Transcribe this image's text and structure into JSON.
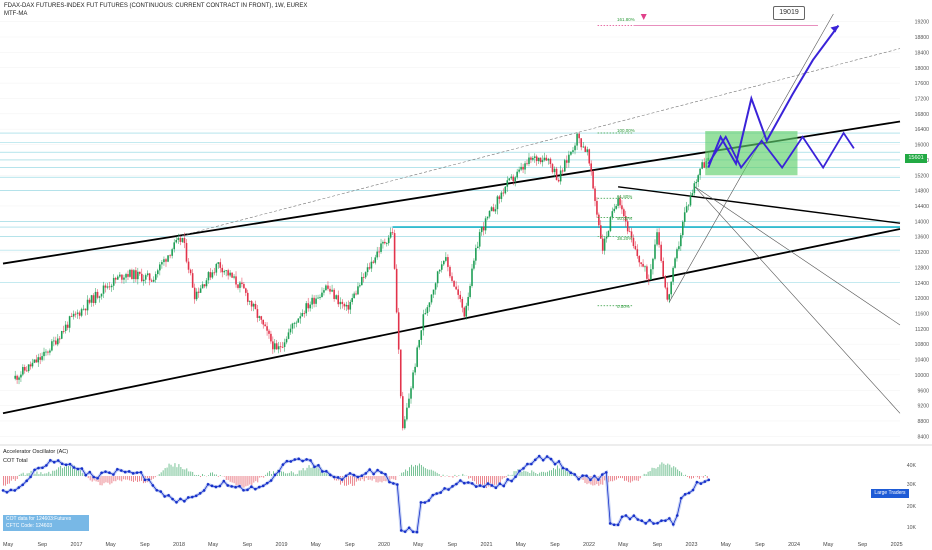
{
  "header": {
    "title": "FDAX-DAX FUTURES-INDEX FUT FUTURES (CONTINUOUS: CURRENT CONTRACT IN FRONT), 1W, EUREX",
    "indicator": "MTF-MA"
  },
  "target_label": "19019",
  "price_badge": "15601",
  "indicators": {
    "ac_label": "Accelerator Oscillator (AC)",
    "cot_label": "COT Total",
    "cot_info_line1": "COT data for 124603:Futures",
    "cot_info_line2": "CFTC Code: 124603",
    "large_traders": "Large Traders"
  },
  "fib_labels": [
    "161.80%",
    "100.00%",
    "61.80%",
    "50.00%",
    "38.20%",
    "0.00%"
  ],
  "chart_data": {
    "type": "candlestick",
    "x_axis_labels": [
      "May",
      "Sep",
      "2017",
      "May",
      "Sep",
      "2018",
      "May",
      "Sep",
      "2019",
      "May",
      "Sep",
      "2020",
      "May",
      "Sep",
      "2021",
      "May",
      "Sep",
      "2022",
      "May",
      "Sep",
      "2023",
      "May",
      "Sep",
      "2024",
      "May",
      "Sep",
      "2025"
    ],
    "y_axis_labels": [
      "19200",
      "18800",
      "18400",
      "18000",
      "17600",
      "17200",
      "16800",
      "16400",
      "16000",
      "15600",
      "15200",
      "14800",
      "14400",
      "14000",
      "13600",
      "13200",
      "12800",
      "12400",
      "12000",
      "11600",
      "11200",
      "10800",
      "10400",
      "10000",
      "9600",
      "9200",
      "8800",
      "8400"
    ],
    "ylim": [
      8200,
      19400
    ],
    "price_path": [
      {
        "x": 2016.4,
        "y": 9900
      },
      {
        "x": 2016.7,
        "y": 10500
      },
      {
        "x": 2016.95,
        "y": 11400
      },
      {
        "x": 2017.3,
        "y": 12300
      },
      {
        "x": 2017.5,
        "y": 12650
      },
      {
        "x": 2017.75,
        "y": 12500
      },
      {
        "x": 2017.95,
        "y": 13300
      },
      {
        "x": 2018.05,
        "y": 13550
      },
      {
        "x": 2018.17,
        "y": 12100
      },
      {
        "x": 2018.4,
        "y": 12900
      },
      {
        "x": 2018.65,
        "y": 12200
      },
      {
        "x": 2018.97,
        "y": 10600
      },
      {
        "x": 2019.2,
        "y": 11600
      },
      {
        "x": 2019.45,
        "y": 12300
      },
      {
        "x": 2019.65,
        "y": 11700
      },
      {
        "x": 2019.95,
        "y": 13200
      },
      {
        "x": 2020.1,
        "y": 13750
      },
      {
        "x": 2020.2,
        "y": 8500
      },
      {
        "x": 2020.4,
        "y": 11500
      },
      {
        "x": 2020.6,
        "y": 13100
      },
      {
        "x": 2020.8,
        "y": 11600
      },
      {
        "x": 2020.95,
        "y": 13700
      },
      {
        "x": 2021.2,
        "y": 14900
      },
      {
        "x": 2021.45,
        "y": 15600
      },
      {
        "x": 2021.6,
        "y": 15700
      },
      {
        "x": 2021.72,
        "y": 15100
      },
      {
        "x": 2021.9,
        "y": 16200
      },
      {
        "x": 2022.0,
        "y": 15800
      },
      {
        "x": 2022.15,
        "y": 13300
      },
      {
        "x": 2022.3,
        "y": 14700
      },
      {
        "x": 2022.45,
        "y": 13300
      },
      {
        "x": 2022.6,
        "y": 12500
      },
      {
        "x": 2022.68,
        "y": 13800
      },
      {
        "x": 2022.78,
        "y": 11900
      },
      {
        "x": 2022.95,
        "y": 14200
      },
      {
        "x": 2023.1,
        "y": 15400
      },
      {
        "x": 2023.18,
        "y": 15600
      }
    ],
    "projection_path": [
      {
        "x": 2023.18,
        "y": 15400
      },
      {
        "x": 2023.3,
        "y": 16200
      },
      {
        "x": 2023.45,
        "y": 15500
      },
      {
        "x": 2023.6,
        "y": 17200
      },
      {
        "x": 2023.75,
        "y": 16100
      },
      {
        "x": 2024.0,
        "y": 17300
      },
      {
        "x": 2024.2,
        "y": 18200
      },
      {
        "x": 2024.45,
        "y": 19100
      }
    ],
    "zigzag_path": [
      {
        "x": 2023.18,
        "y": 15500
      },
      {
        "x": 2023.35,
        "y": 16200
      },
      {
        "x": 2023.5,
        "y": 15400
      },
      {
        "x": 2023.7,
        "y": 16100
      },
      {
        "x": 2023.9,
        "y": 15400
      },
      {
        "x": 2024.1,
        "y": 16200
      },
      {
        "x": 2024.3,
        "y": 15400
      },
      {
        "x": 2024.5,
        "y": 16300
      },
      {
        "x": 2024.6,
        "y": 15900
      }
    ],
    "target_box": {
      "x0": 2023.15,
      "x1": 2024.05,
      "y0": 15200,
      "y1": 16350
    },
    "fib_levels": [
      {
        "label": "161.80%",
        "y": 19100
      },
      {
        "label": "100.00%",
        "y": 16300
      },
      {
        "label": "61.80%",
        "y": 14600
      },
      {
        "label": "50.00%",
        "y": 14100
      },
      {
        "label": "38.20%",
        "y": 13600
      },
      {
        "label": "0.00%",
        "y": 11800
      }
    ]
  }
}
